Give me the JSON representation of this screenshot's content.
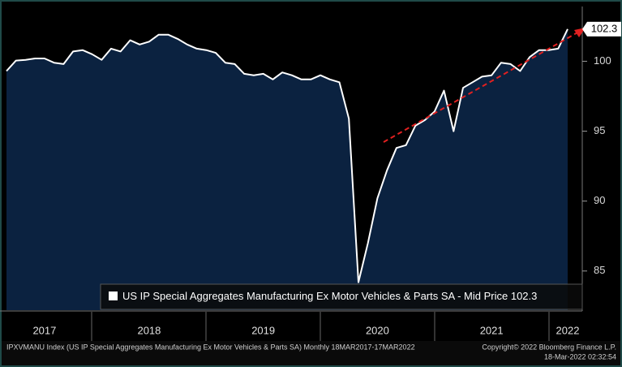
{
  "chart_data": {
    "type": "area",
    "series": [
      {
        "name": "US IP Special Aggregates Manufacturing Ex Motor Vehicles & Parts SA - Mid Price",
        "color": "#ffffff",
        "fill": "#0b2240",
        "values": [
          99.3,
          100.05,
          100.1,
          100.2,
          100.2,
          99.9,
          99.8,
          100.7,
          100.8,
          100.5,
          100.1,
          100.9,
          100.7,
          101.5,
          101.2,
          101.4,
          101.9,
          101.9,
          101.6,
          101.2,
          100.9,
          100.8,
          100.6,
          99.9,
          99.8,
          99.1,
          99.0,
          99.1,
          98.7,
          99.2,
          99.0,
          98.7,
          98.7,
          99.0,
          98.7,
          98.5,
          95.9,
          84.2,
          87.0,
          90.2,
          92.2,
          93.8,
          94.0,
          95.4,
          95.8,
          96.4,
          97.9,
          95.0,
          98.1,
          98.5,
          98.9,
          99.0,
          99.9,
          99.8,
          99.3,
          100.3,
          100.8,
          100.8,
          100.9,
          102.3
        ]
      }
    ],
    "categories": [
      null,
      null,
      null,
      null,
      "2017",
      null,
      null,
      null,
      null,
      null,
      null,
      null,
      null,
      null,
      null,
      "2018",
      null,
      null,
      null,
      null,
      null,
      null,
      null,
      null,
      null,
      null,
      null,
      "2019",
      null,
      null,
      null,
      null,
      null,
      null,
      null,
      null,
      null,
      null,
      null,
      "2020",
      null,
      null,
      null,
      null,
      null,
      null,
      null,
      null,
      null,
      null,
      null,
      "2021",
      null,
      null,
      null,
      null,
      null,
      null,
      null,
      "2022"
    ],
    "ylim": [
      82.2,
      103.8
    ],
    "yticks": [
      85,
      90,
      95,
      100
    ],
    "footer_left": "IPXVMANU Index (US IP Special Aggregates Manufacturing Ex Motor Vehicles & Parts SA)  Monthly 18MAR2017-17MAR2022",
    "footer_right_1": "Copyright© 2022 Bloomberg Finance L.P.",
    "footer_right_2": "18-Mar-2022 02:32:54"
  }
}
